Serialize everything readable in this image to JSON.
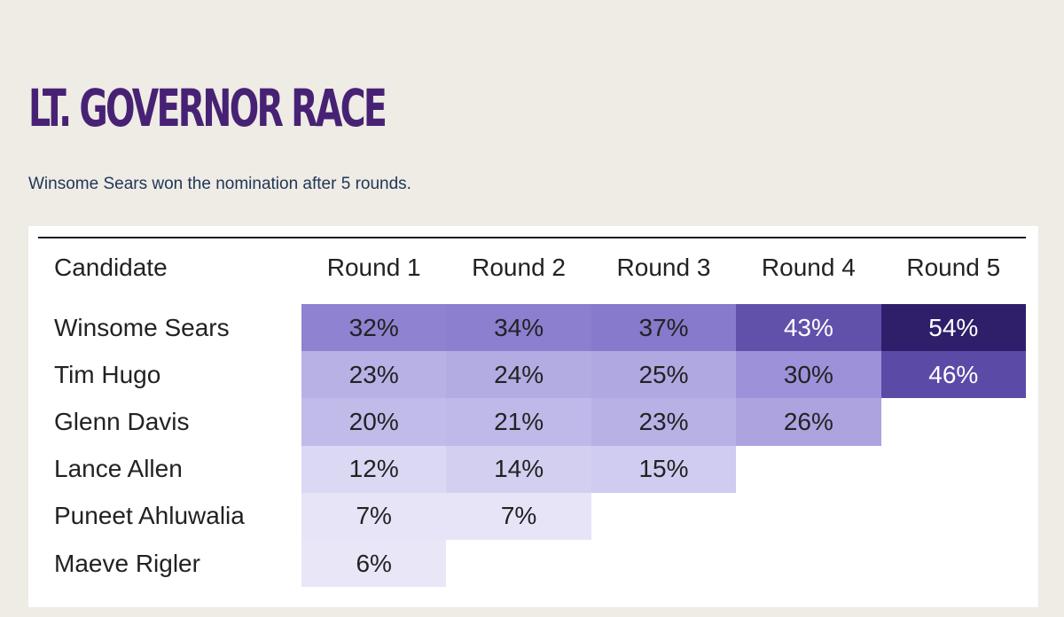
{
  "page": {
    "title": "LT. GOVERNOR RACE",
    "subtitle": "Winsome Sears won the nomination after 5 rounds."
  },
  "table": {
    "headers": {
      "candidate": "Candidate",
      "rounds": [
        "Round 1",
        "Round 2",
        "Round 3",
        "Round 4",
        "Round 5"
      ]
    },
    "rows": [
      {
        "name": "Winsome Sears",
        "values": [
          "32%",
          "34%",
          "37%",
          "43%",
          "54%"
        ]
      },
      {
        "name": "Tim Hugo",
        "values": [
          "23%",
          "24%",
          "25%",
          "30%",
          "46%"
        ]
      },
      {
        "name": "Glenn Davis",
        "values": [
          "20%",
          "21%",
          "23%",
          "26%",
          ""
        ]
      },
      {
        "name": "Lance Allen",
        "values": [
          "12%",
          "14%",
          "15%",
          "",
          ""
        ]
      },
      {
        "name": "Puneet Ahluwalia",
        "values": [
          "7%",
          "7%",
          "",
          "",
          ""
        ]
      },
      {
        "name": "Maeve Rigler",
        "values": [
          "6%",
          "",
          "",
          "",
          ""
        ]
      }
    ]
  },
  "colors": {
    "title": "#472274",
    "subtitle": "#1e3658",
    "background": "#efebe5",
    "heat_scale": {
      "54": "#2f1f6a",
      "46": "#5b4aa6",
      "43": "#6251ab",
      "37": "#8779cb",
      "34": "#8c7fcf",
      "32": "#8e82d1",
      "30": "#9d92d9",
      "26": "#aca3df",
      "25": "#b0a8e1",
      "24": "#b3ace3",
      "23": "#b8b1e6",
      "21": "#bfb9e9",
      "20": "#c1bbea",
      "15": "#d0cbf0",
      "14": "#d3cff1",
      "12": "#dbd8f4",
      "7": "#e7e4f8",
      "6": "#e9e6f8"
    }
  }
}
